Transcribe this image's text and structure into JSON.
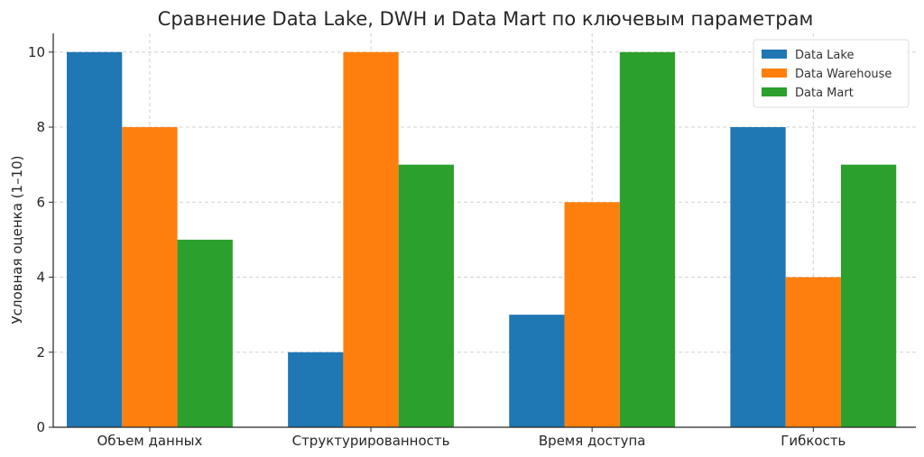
{
  "chart_data": {
    "type": "bar",
    "title": "Сравнение Data Lake, DWH и Data Mart по ключевым параметрам",
    "xlabel": "",
    "ylabel": "Условная оценка (1–10)",
    "categories": [
      "Объем данных",
      "Структурированность",
      "Время доступа",
      "Гибкость"
    ],
    "series": [
      {
        "name": "Data Lake",
        "color": "#1f77b4",
        "values": [
          10,
          2,
          3,
          8
        ]
      },
      {
        "name": "Data Warehouse",
        "color": "#ff7f0e",
        "values": [
          8,
          10,
          6,
          4
        ]
      },
      {
        "name": "Data Mart",
        "color": "#2ca02c",
        "values": [
          5,
          7,
          10,
          7
        ]
      }
    ],
    "ylim": [
      0,
      10.5
    ],
    "yticks": [
      0,
      2,
      4,
      6,
      8,
      10
    ],
    "grid": true,
    "legend_position": "top-right"
  }
}
